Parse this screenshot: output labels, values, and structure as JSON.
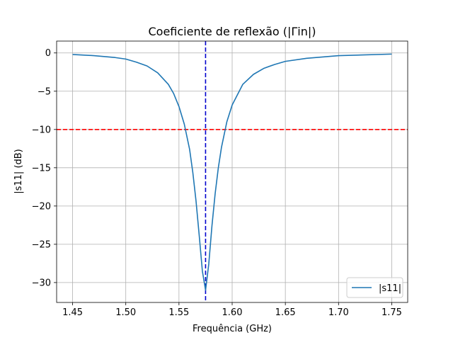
{
  "chart_data": {
    "type": "line",
    "title": "Coeficiente de reflexão (|Γin|)",
    "xlabel": "Frequência (GHz)",
    "ylabel": "|s11| (dB)",
    "xlim": [
      1.435,
      1.765
    ],
    "ylim": [
      -32.6,
      1.55
    ],
    "xticks": [
      1.45,
      1.5,
      1.55,
      1.6,
      1.65,
      1.7,
      1.75
    ],
    "xtick_labels": [
      "1.45",
      "1.50",
      "1.55",
      "1.60",
      "1.65",
      "1.70",
      "1.75"
    ],
    "yticks": [
      0,
      -5,
      -10,
      -15,
      -20,
      -25,
      -30
    ],
    "ytick_labels": [
      "0",
      "−5",
      "−10",
      "−15",
      "−20",
      "−25",
      "−30"
    ],
    "grid": true,
    "legend_position": "lower-right",
    "series": [
      {
        "name": "|s11|",
        "color": "#1f77b4",
        "x": [
          1.45,
          1.47,
          1.49,
          1.5,
          1.51,
          1.52,
          1.53,
          1.54,
          1.545,
          1.55,
          1.555,
          1.56,
          1.563,
          1.566,
          1.569,
          1.572,
          1.575,
          1.578,
          1.581,
          1.584,
          1.587,
          1.59,
          1.595,
          1.6,
          1.61,
          1.62,
          1.63,
          1.64,
          1.65,
          1.67,
          1.7,
          1.75
        ],
        "y": [
          -0.2,
          -0.35,
          -0.6,
          -0.8,
          -1.2,
          -1.7,
          -2.6,
          -4.1,
          -5.3,
          -7.0,
          -9.3,
          -12.6,
          -15.6,
          -19.3,
          -23.8,
          -28.5,
          -31.0,
          -27.6,
          -22.6,
          -18.4,
          -15.0,
          -12.3,
          -9.0,
          -6.8,
          -4.1,
          -2.8,
          -2.0,
          -1.5,
          -1.1,
          -0.7,
          -0.35,
          -0.15
        ]
      }
    ],
    "reference_lines": [
      {
        "orientation": "horizontal",
        "value": -10,
        "color": "#ff0000",
        "style": "dashed"
      },
      {
        "orientation": "vertical",
        "value": 1.575,
        "color": "#0000cd",
        "style": "dashed"
      }
    ]
  }
}
